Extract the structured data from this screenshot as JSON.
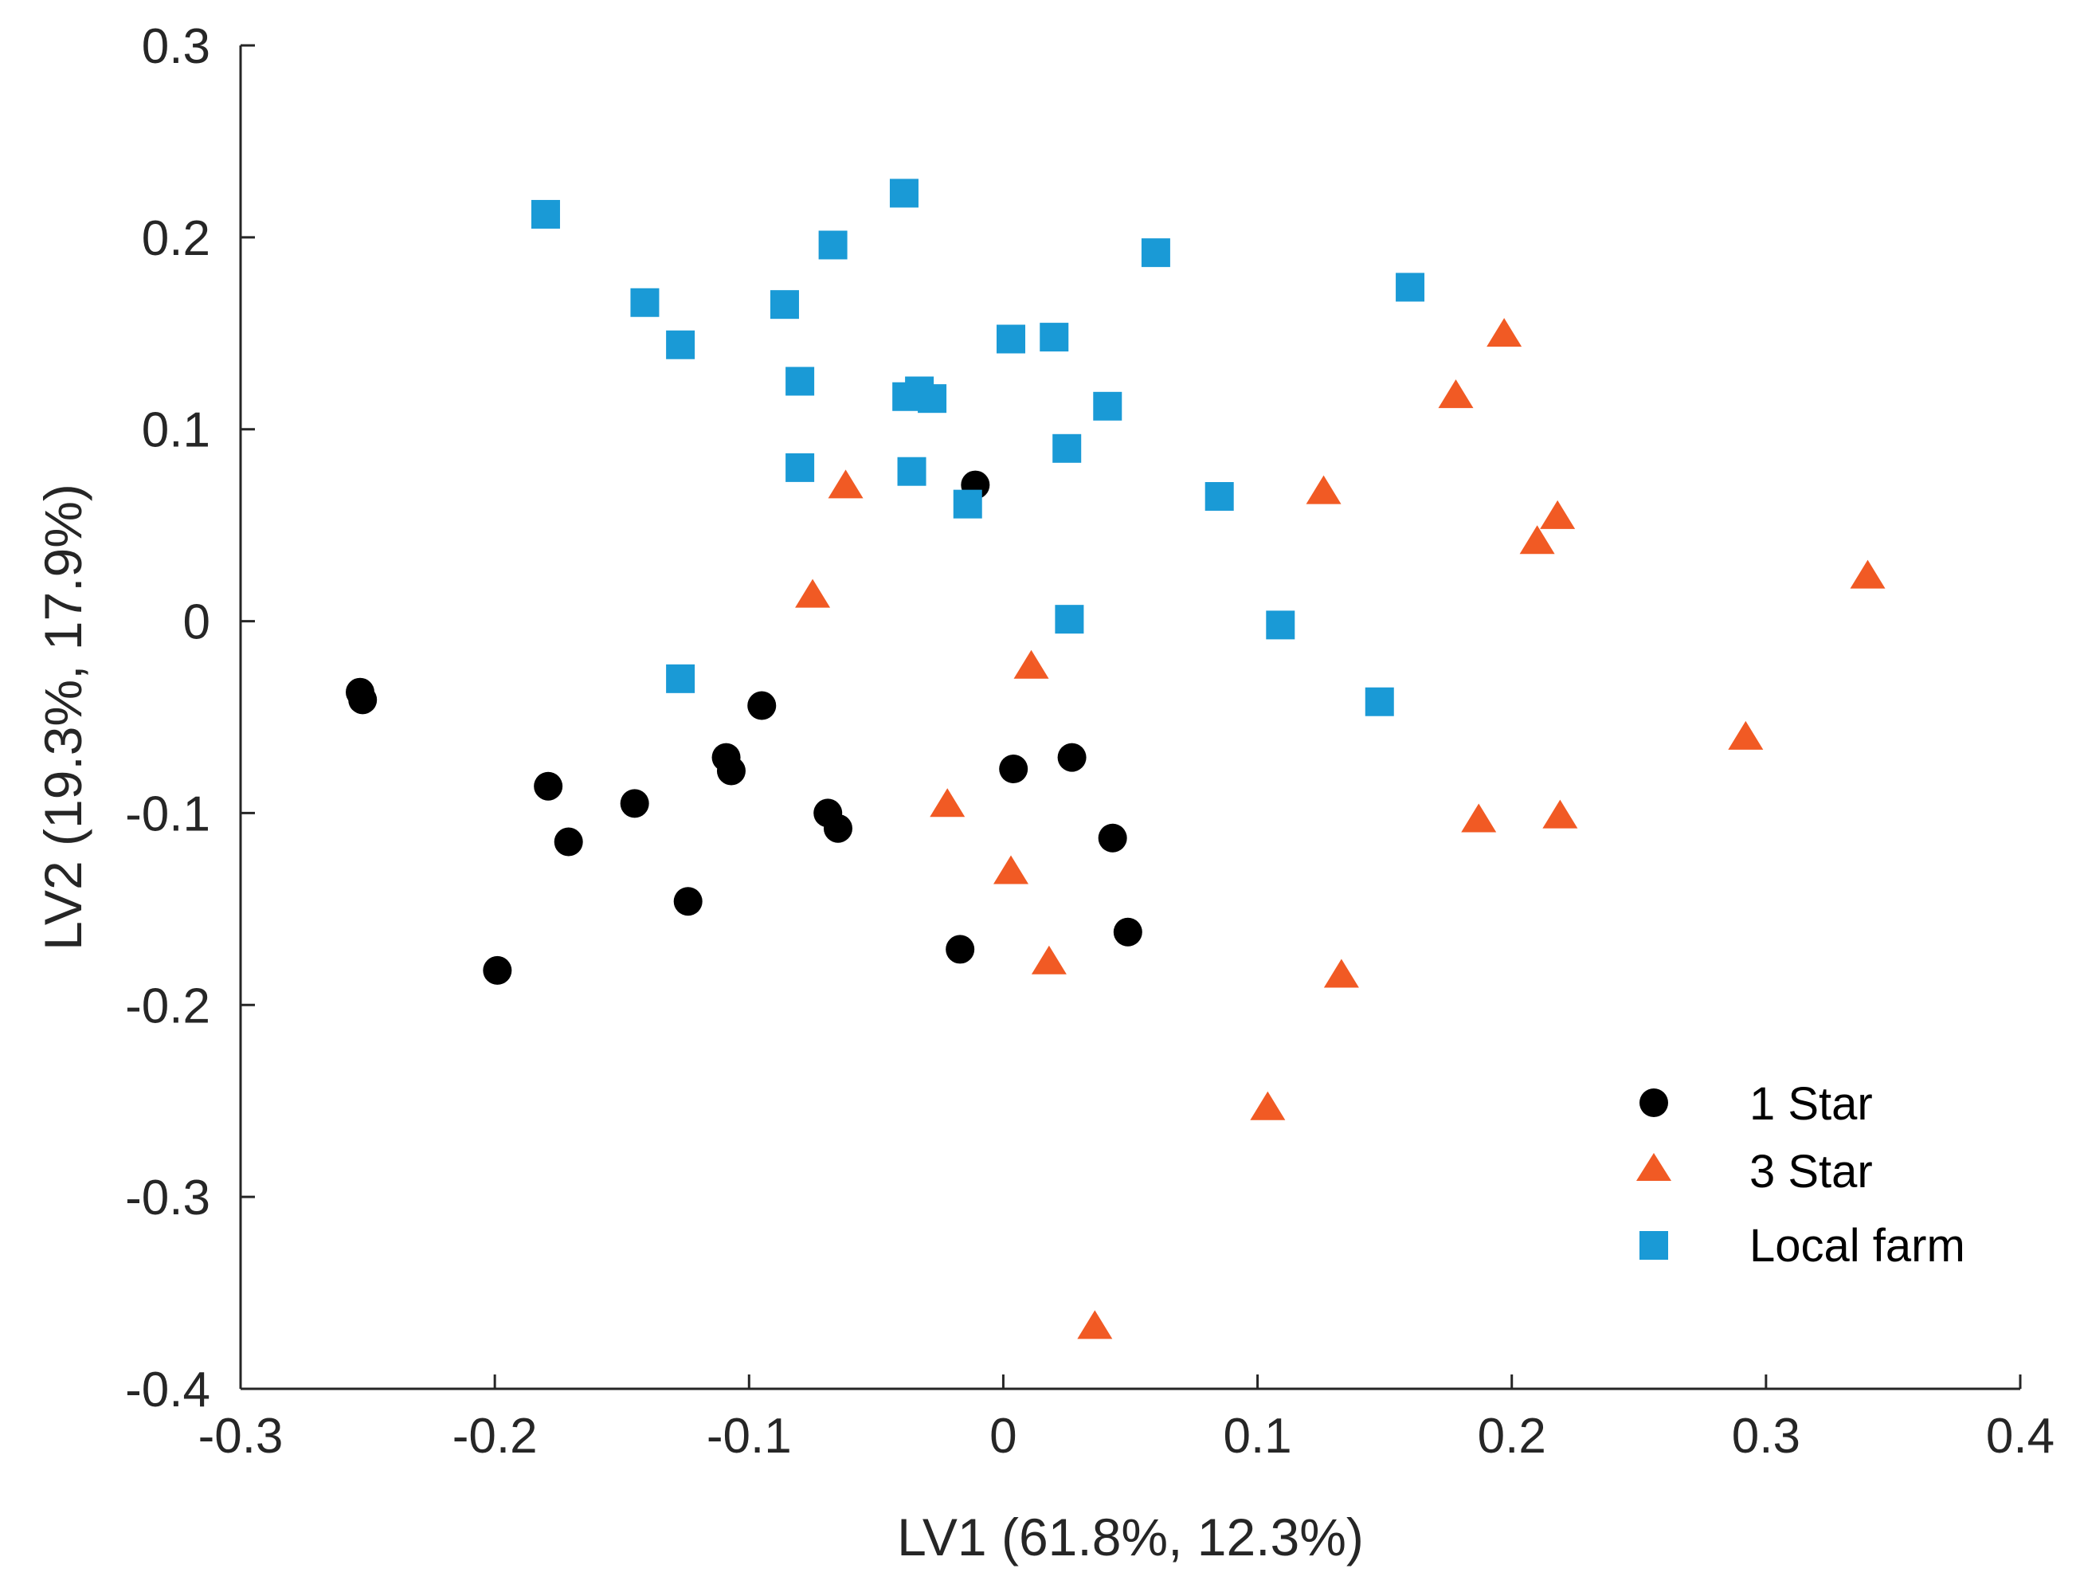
{
  "chart_data": {
    "type": "scatter",
    "title": "",
    "xlabel": "LV1 (61.8%, 12.3%)",
    "ylabel": "LV2 (19.3%, 17.9%)",
    "xlim": [
      -0.3,
      0.4
    ],
    "ylim": [
      -0.4,
      0.3
    ],
    "xticks": [
      -0.3,
      -0.2,
      -0.1,
      0,
      0.1,
      0.2,
      0.3,
      0.4
    ],
    "yticks": [
      -0.4,
      -0.3,
      -0.2,
      -0.1,
      0,
      0.1,
      0.2,
      0.3
    ],
    "xtick_labels": [
      "-0.3",
      "-0.2",
      "-0.1",
      "0",
      "0.1",
      "0.2",
      "0.3",
      "0.4"
    ],
    "ytick_labels": [
      "-0.4",
      "-0.3",
      "-0.2",
      "-0.1",
      "0",
      "0.1",
      "0.2",
      "0.3"
    ],
    "grid": false,
    "legend_position": "bottom-right",
    "series": [
      {
        "name": "1 Star",
        "marker": "circle",
        "color": "#000000",
        "points": [
          [
            -0.253,
            -0.037
          ],
          [
            -0.252,
            -0.041
          ],
          [
            -0.179,
            -0.086
          ],
          [
            -0.171,
            -0.115
          ],
          [
            -0.145,
            -0.095
          ],
          [
            -0.124,
            -0.146
          ],
          [
            -0.199,
            -0.182
          ],
          [
            -0.109,
            -0.071
          ],
          [
            -0.107,
            -0.078
          ],
          [
            -0.095,
            -0.044
          ],
          [
            -0.069,
            -0.1
          ],
          [
            -0.065,
            -0.108
          ],
          [
            -0.011,
            0.071
          ],
          [
            0.004,
            -0.077
          ],
          [
            0.027,
            -0.071
          ],
          [
            0.043,
            -0.113
          ],
          [
            0.049,
            -0.162
          ],
          [
            -0.017,
            -0.171
          ]
        ]
      },
      {
        "name": "3 Star",
        "marker": "triangle",
        "color": "#f15a24",
        "points": [
          [
            -0.062,
            0.07
          ],
          [
            -0.075,
            0.013
          ],
          [
            0.011,
            -0.024
          ],
          [
            -0.022,
            -0.096
          ],
          [
            0.003,
            -0.131
          ],
          [
            0.018,
            -0.178
          ],
          [
            0.036,
            -0.368
          ],
          [
            0.104,
            -0.254
          ],
          [
            0.126,
            0.067
          ],
          [
            0.133,
            -0.185
          ],
          [
            0.178,
            0.117
          ],
          [
            0.197,
            0.149
          ],
          [
            0.21,
            0.041
          ],
          [
            0.218,
            0.054
          ],
          [
            0.187,
            -0.104
          ],
          [
            0.219,
            -0.102
          ],
          [
            0.292,
            -0.061
          ],
          [
            0.34,
            0.023
          ]
        ]
      },
      {
        "name": "Local farm",
        "marker": "square",
        "color": "#1a9ad6",
        "points": [
          [
            -0.18,
            0.212
          ],
          [
            -0.141,
            0.166
          ],
          [
            -0.127,
            0.144
          ],
          [
            -0.086,
            0.165
          ],
          [
            -0.08,
            0.125
          ],
          [
            -0.08,
            0.08
          ],
          [
            -0.067,
            0.196
          ],
          [
            -0.039,
            0.223
          ],
          [
            -0.038,
            0.117
          ],
          [
            -0.033,
            0.12
          ],
          [
            -0.028,
            0.116
          ],
          [
            -0.036,
            0.078
          ],
          [
            -0.014,
            0.061
          ],
          [
            0.003,
            0.147
          ],
          [
            0.02,
            0.148
          ],
          [
            0.025,
            0.09
          ],
          [
            0.041,
            0.112
          ],
          [
            0.06,
            0.192
          ],
          [
            0.085,
            0.065
          ],
          [
            0.16,
            0.174
          ],
          [
            0.026,
            0.001
          ],
          [
            0.109,
            -0.002
          ],
          [
            0.148,
            -0.042
          ],
          [
            -0.127,
            -0.03
          ]
        ]
      }
    ]
  }
}
